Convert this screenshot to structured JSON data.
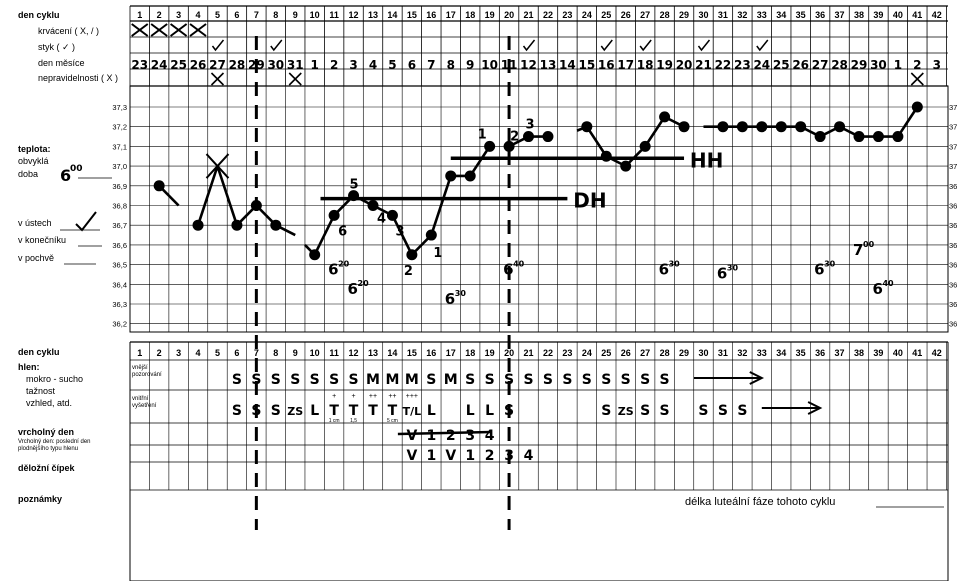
{
  "header": {
    "cycle_day_label": "den cyklu",
    "bleeding_label": "krvácení ( X, / )",
    "intercourse_label": "styk ( ✓ )",
    "month_day_label": "den měsíce",
    "irregularity_label": "nepravidelnosti ( X )"
  },
  "cycle_days": [
    "1",
    "2",
    "3",
    "4",
    "5",
    "6",
    "7",
    "8",
    "9",
    "10",
    "11",
    "12",
    "13",
    "14",
    "15",
    "16",
    "17",
    "18",
    "19",
    "20",
    "21",
    "22",
    "23",
    "24",
    "25",
    "26",
    "27",
    "28",
    "29",
    "30",
    "31",
    "32",
    "33",
    "34",
    "35",
    "36",
    "37",
    "38",
    "39",
    "40",
    "41",
    "42"
  ],
  "month_days": [
    "23",
    "24",
    "25",
    "26",
    "27",
    "28",
    "29",
    "30",
    "31",
    "1",
    "2",
    "3",
    "4",
    "5",
    "6",
    "7",
    "8",
    "9",
    "10",
    "11",
    "12",
    "13",
    "14",
    "15",
    "16",
    "17",
    "18",
    "19",
    "20",
    "21",
    "22",
    "23",
    "24",
    "25",
    "26",
    "27",
    "28",
    "29",
    "30",
    "1",
    "2",
    "3"
  ],
  "bleeding_days": [
    1,
    2,
    3,
    4
  ],
  "intercourse_days": [
    5,
    8,
    21,
    25,
    27,
    30,
    33
  ],
  "irregular_days": [
    5,
    9,
    41
  ],
  "temperature_labels": {
    "title": "teplota:",
    "usual_time_label": "obvyklá",
    "time_label": "doba",
    "usual_time_value": "6",
    "usual_time_minutes": "00",
    "mouth_label": "v ústech",
    "rectum_label": "v konečníku",
    "vagina_label": "v pochvě"
  },
  "temp_ticks": [
    "37,3",
    "37,2",
    "37,1",
    "37,0",
    "36,9",
    "36,8",
    "36,7",
    "36,6",
    "36,5",
    "36,4",
    "36,3",
    "36,2"
  ],
  "mucus_labels": {
    "cycle_day_label": "den cyklu",
    "mucus_title": "hlen:",
    "mucus_line1": "mokro - sucho",
    "mucus_line2": "tažnost",
    "mucus_line3": "vzhled, atd.",
    "external_label_1": "vnější",
    "external_label_2": "pozorování",
    "internal_label_1": "vnitřní",
    "internal_label_2": "vyšetření",
    "peak_title": "vrcholný den",
    "peak_sub1": "Vrcholný den: poslední den",
    "peak_sub2": "plodnějšího typu hlenu",
    "cervix_label": "děložní čípek",
    "notes_label": "poznámky",
    "luteal_label": "délka luteální fáze tohoto cyklu"
  },
  "chart_data": {
    "type": "line",
    "title": "",
    "xlabel": "den cyklu",
    "ylabel": "teplota:",
    "ylim": [
      36.2,
      37.3
    ],
    "x": [
      2,
      3,
      4,
      5,
      6,
      7,
      8,
      9,
      10,
      11,
      12,
      13,
      14,
      15,
      16,
      17,
      18,
      19,
      20,
      21,
      22,
      23,
      24,
      25,
      26,
      27,
      28,
      29,
      30,
      31,
      32,
      33,
      34,
      35,
      36,
      37,
      38,
      39,
      40,
      41
    ],
    "series": [
      {
        "segments": [
          [
            [
              2,
              36.9
            ],
            [
              3,
              36.8
            ]
          ],
          [
            [
              4,
              36.7
            ],
            [
              5,
              37.0
            ],
            [
              6,
              36.7
            ],
            [
              7,
              36.8
            ],
            [
              8,
              36.7
            ],
            [
              9,
              36.65
            ]
          ],
          [
            [
              9.5,
              36.6
            ],
            [
              10,
              36.55
            ],
            [
              11,
              36.75
            ],
            [
              12,
              36.85
            ],
            [
              13,
              36.8
            ],
            [
              14,
              36.75
            ],
            [
              15,
              36.55
            ],
            [
              16,
              36.65
            ],
            [
              17,
              36.95
            ],
            [
              18,
              36.95
            ],
            [
              19,
              37.1
            ]
          ],
          [
            [
              20,
              37.1
            ],
            [
              21,
              37.15
            ],
            [
              22,
              37.15
            ]
          ],
          [
            [
              23.5,
              37.18
            ],
            [
              24,
              37.2
            ],
            [
              25,
              37.05
            ],
            [
              26,
              37.0
            ],
            [
              27,
              37.1
            ],
            [
              28,
              37.25
            ],
            [
              29,
              37.2
            ]
          ],
          [
            [
              30,
              37.2
            ],
            [
              31,
              37.2
            ],
            [
              32,
              37.2
            ],
            [
              33,
              37.2
            ],
            [
              34,
              37.2
            ],
            [
              35,
              37.2
            ],
            [
              36,
              37.15
            ],
            [
              37,
              37.2
            ],
            [
              38,
              37.15
            ],
            [
              39,
              37.15
            ],
            [
              40,
              37.15
            ],
            [
              41,
              37.3
            ]
          ]
        ]
      }
    ],
    "points_days": [
      2,
      4,
      5,
      6,
      7,
      8,
      10,
      11,
      12,
      13,
      14,
      15,
      16,
      17,
      18,
      19,
      20,
      21,
      22,
      24,
      25,
      26,
      27,
      28,
      29,
      31,
      32,
      33,
      34,
      35,
      36,
      37,
      38,
      39,
      40,
      41
    ],
    "cover_lines": [
      {
        "from": 10.8,
        "to": 23.5,
        "temp": 36.85,
        "label": "DH"
      },
      {
        "from": 17.5,
        "to": 29.5,
        "temp": 37.05,
        "label": "HH"
      }
    ],
    "vertical_dashed_days": [
      6.5,
      19.5
    ],
    "point_numbers": [
      {
        "day": 11,
        "temp": 36.75,
        "label": "6"
      },
      {
        "day": 12,
        "temp": 36.85,
        "label": "5"
      },
      {
        "day": 13,
        "temp": 36.8,
        "label": "4"
      },
      {
        "day": 14,
        "temp": 36.75,
        "label": "3"
      },
      {
        "day": 15,
        "temp": 36.55,
        "label": "2"
      },
      {
        "day": 16,
        "temp": 36.65,
        "label": "1"
      },
      {
        "day": 19,
        "temp": 37.1,
        "label": "1"
      },
      {
        "day": 20,
        "temp": 37.1,
        "label": "2"
      },
      {
        "day": 21,
        "temp": 37.15,
        "label": "3"
      }
    ],
    "time_notes": [
      {
        "day": 11,
        "temp": 36.45,
        "label": "6",
        "minutes": "20"
      },
      {
        "day": 12,
        "temp": 36.35,
        "label": "6",
        "minutes": "20"
      },
      {
        "day": 17,
        "temp": 36.3,
        "label": "6",
        "minutes": "30"
      },
      {
        "day": 20,
        "temp": 36.45,
        "label": "6",
        "minutes": "40"
      },
      {
        "day": 28,
        "temp": 36.45,
        "label": "6",
        "minutes": "30"
      },
      {
        "day": 31,
        "temp": 36.43,
        "label": "6",
        "minutes": "30"
      },
      {
        "day": 36,
        "temp": 36.45,
        "label": "6",
        "minutes": "30"
      },
      {
        "day": 38,
        "temp": 36.55,
        "label": "7",
        "minutes": "00"
      },
      {
        "day": 39,
        "temp": 36.35,
        "label": "6",
        "minutes": "40"
      }
    ],
    "crossed_day": 5,
    "external_mucus": [
      {
        "day": 6,
        "label": "S"
      },
      {
        "day": 7,
        "label": "S"
      },
      {
        "day": 8,
        "label": "S"
      },
      {
        "day": 9,
        "label": "S"
      },
      {
        "day": 10,
        "label": "S"
      },
      {
        "day": 11,
        "label": "S"
      },
      {
        "day": 12,
        "label": "S"
      },
      {
        "day": 13,
        "label": "M"
      },
      {
        "day": 14,
        "label": "M"
      },
      {
        "day": 15,
        "label": "M"
      },
      {
        "day": 16,
        "label": "S"
      },
      {
        "day": 17,
        "label": "M"
      },
      {
        "day": 18,
        "label": "S"
      },
      {
        "day": 19,
        "label": "S"
      },
      {
        "day": 20,
        "label": "S"
      },
      {
        "day": 21,
        "label": "S"
      },
      {
        "day": 22,
        "label": "S"
      },
      {
        "day": 23,
        "label": "S"
      },
      {
        "day": 24,
        "label": "S"
      },
      {
        "day": 25,
        "label": "S"
      },
      {
        "day": 26,
        "label": "S"
      },
      {
        "day": 27,
        "label": "S"
      },
      {
        "day": 28,
        "label": "S"
      }
    ],
    "internal_mucus": [
      {
        "day": 6,
        "label": "S"
      },
      {
        "day": 7,
        "label": "S"
      },
      {
        "day": 8,
        "label": "S"
      },
      {
        "day": 9,
        "label": "ZS"
      },
      {
        "day": 10,
        "label": "L"
      },
      {
        "day": 11,
        "label": "T"
      },
      {
        "day": 12,
        "label": "T"
      },
      {
        "day": 13,
        "label": "T"
      },
      {
        "day": 14,
        "label": "T"
      },
      {
        "day": 15,
        "label": "T/L"
      },
      {
        "day": 16,
        "label": "L"
      },
      {
        "day": 18,
        "label": "L"
      },
      {
        "day": 19,
        "label": "L"
      },
      {
        "day": 20,
        "label": "S"
      },
      {
        "day": 25,
        "label": "S"
      },
      {
        "day": 26,
        "label": "ZS"
      },
      {
        "day": 27,
        "label": "S"
      },
      {
        "day": 28,
        "label": "S"
      },
      {
        "day": 30,
        "label": "S"
      },
      {
        "day": 31,
        "label": "S"
      },
      {
        "day": 32,
        "label": "S"
      }
    ],
    "internal_superscripts": [
      {
        "day": 11,
        "top": "+",
        "bottom": "1 cm"
      },
      {
        "day": 12,
        "top": "+",
        "bottom": "1,5"
      },
      {
        "day": 13,
        "top": "++",
        "bottom": ""
      },
      {
        "day": 14,
        "top": "++",
        "bottom": "5 cm"
      },
      {
        "day": 15,
        "top": "+++",
        "bottom": ""
      }
    ],
    "peak_marks": [
      {
        "day": 15,
        "label": "V"
      },
      {
        "day": 16,
        "label": "1"
      },
      {
        "day": 17,
        "label": "2"
      },
      {
        "day": 18,
        "label": "3"
      },
      {
        "day": 19,
        "label": "4"
      }
    ],
    "cervix_marks": [
      {
        "day": 15,
        "label": "V"
      },
      {
        "day": 16,
        "label": "1"
      },
      {
        "day": 17,
        "label": "V"
      },
      {
        "day": 18,
        "label": "1"
      },
      {
        "day": 19,
        "label": "2"
      },
      {
        "day": 20,
        "label": "3"
      },
      {
        "day": 21,
        "label": "4"
      }
    ],
    "arrows": [
      {
        "row": "external",
        "from_day": 29.5,
        "to_day": 33
      },
      {
        "row": "internal",
        "from_day": 33,
        "to_day": 36
      }
    ]
  }
}
